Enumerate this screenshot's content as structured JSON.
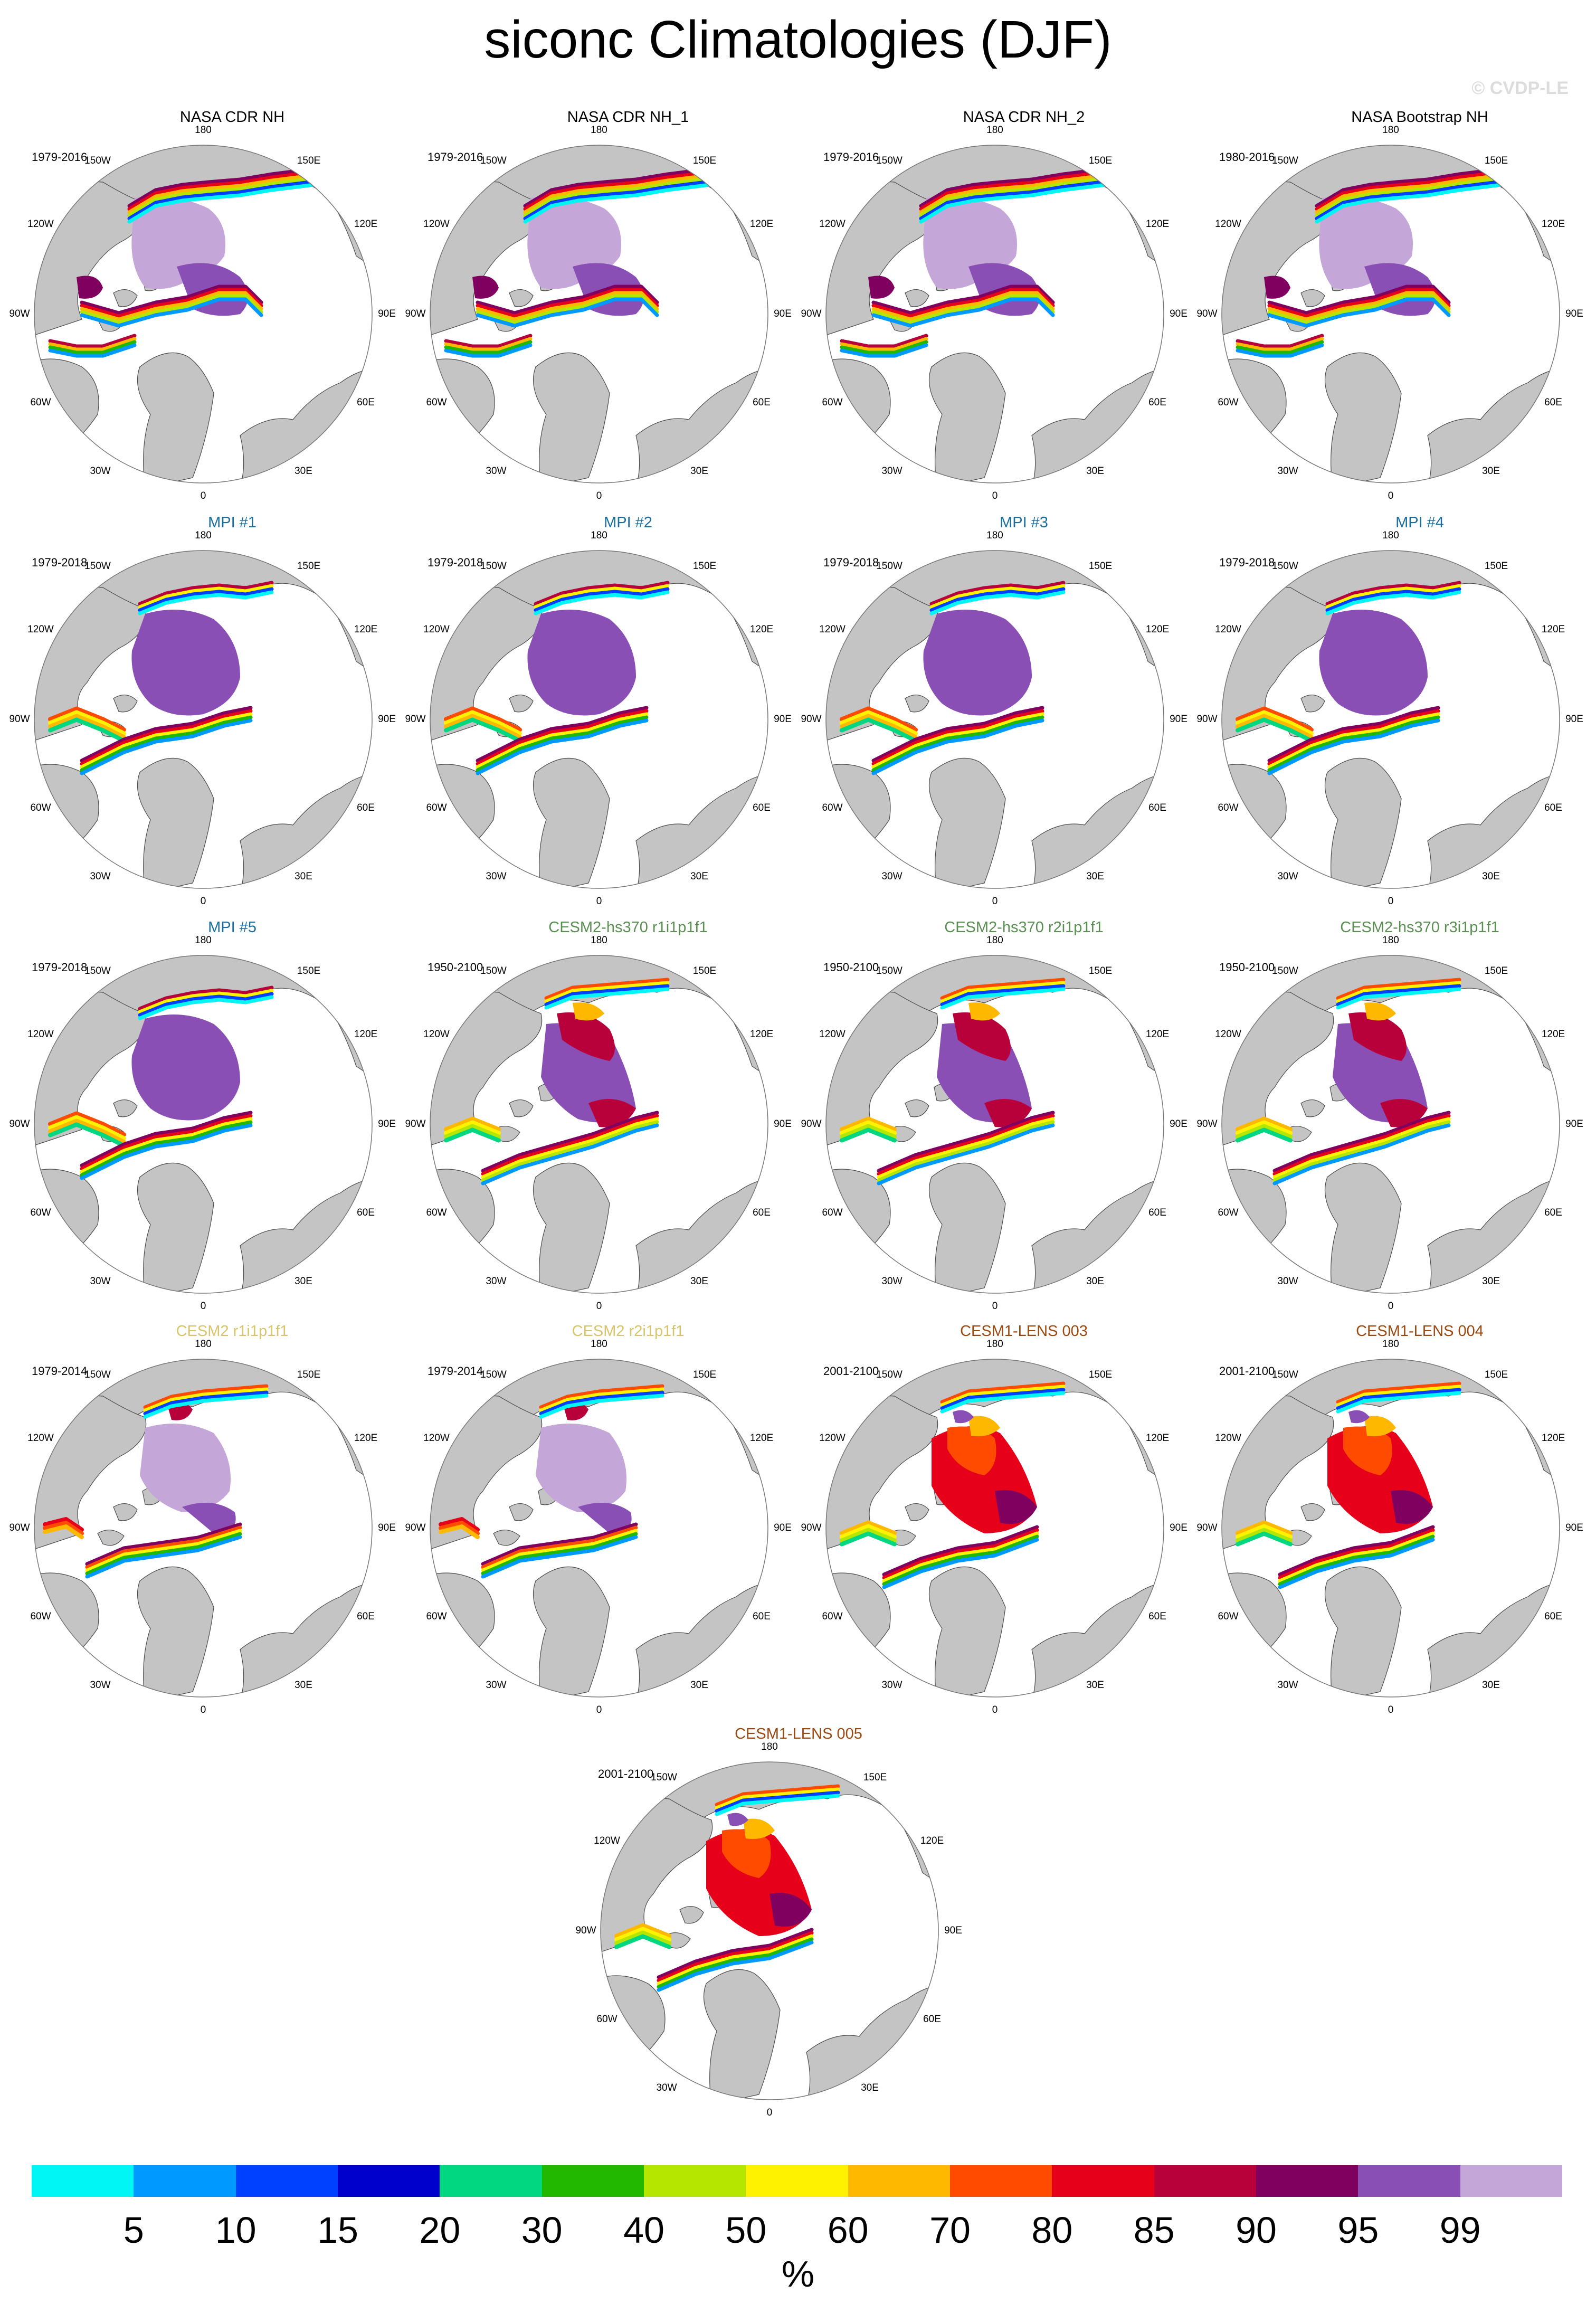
{
  "title": "siconc Climatologies (DJF)",
  "credit": "© CVDP-LE",
  "lon_labels": {
    "top": "180",
    "top_right": "150E",
    "top_left": "150W",
    "upper_right": "120E",
    "upper_left": "120W",
    "right": "90E",
    "left": "90W",
    "lower_right": "60E",
    "lower_left": "60W",
    "bottom_right": "30E",
    "bottom_left": "30W",
    "bottom": "0"
  },
  "colors": {
    "ocean": "#ffffff",
    "land": "#c4c4c4",
    "coastline": "#4a4a4a",
    "palette": [
      "#00f5f5",
      "#0099ff",
      "#0040ff",
      "#0000cc",
      "#00d780",
      "#22b800",
      "#b5e600",
      "#fff200",
      "#ffb800",
      "#ff4b00",
      "#e6001a",
      "#b8003a",
      "#800060",
      "#8a4fb5",
      "#c4a6d8"
    ]
  },
  "panels": [
    {
      "title": "NASA CDR NH",
      "title_color": "#000000",
      "years": "1979-2016",
      "pattern": "obs"
    },
    {
      "title": "NASA CDR NH_1",
      "title_color": "#000000",
      "years": "1979-2016",
      "pattern": "obs"
    },
    {
      "title": "NASA CDR NH_2",
      "title_color": "#000000",
      "years": "1979-2016",
      "pattern": "obs"
    },
    {
      "title": "NASA Bootstrap NH",
      "title_color": "#000000",
      "years": "1980-2016",
      "pattern": "obs"
    },
    {
      "title": "MPI #1",
      "title_color": "#1a6fa0",
      "years": "1979-2018",
      "pattern": "mpi"
    },
    {
      "title": "MPI #2",
      "title_color": "#1a6fa0",
      "years": "1979-2018",
      "pattern": "mpi"
    },
    {
      "title": "MPI #3",
      "title_color": "#1a6fa0",
      "years": "1979-2018",
      "pattern": "mpi"
    },
    {
      "title": "MPI #4",
      "title_color": "#1a6fa0",
      "years": "1979-2018",
      "pattern": "mpi"
    },
    {
      "title": "MPI #5",
      "title_color": "#1a6fa0",
      "years": "1979-2018",
      "pattern": "mpi"
    },
    {
      "title": "CESM2-hs370 r1i1p1f1",
      "title_color": "#5a8f52",
      "years": "1950-2100",
      "pattern": "hs370"
    },
    {
      "title": "CESM2-hs370 r2i1p1f1",
      "title_color": "#5a8f52",
      "years": "1950-2100",
      "pattern": "hs370"
    },
    {
      "title": "CESM2-hs370 r3i1p1f1",
      "title_color": "#5a8f52",
      "years": "1950-2100",
      "pattern": "hs370"
    },
    {
      "title": "CESM2 r1i1p1f1",
      "title_color": "#d8c46a",
      "years": "1979-2014",
      "pattern": "cesm2"
    },
    {
      "title": "CESM2 r2i1p1f1",
      "title_color": "#d8c46a",
      "years": "1979-2014",
      "pattern": "cesm2"
    },
    {
      "title": "CESM1-LENS 003",
      "title_color": "#9a4a10",
      "years": "2001-2100",
      "pattern": "lens"
    },
    {
      "title": "CESM1-LENS 004",
      "title_color": "#9a4a10",
      "years": "2001-2100",
      "pattern": "lens"
    },
    {
      "title": "CESM1-LENS 005",
      "title_color": "#9a4a10",
      "years": "2001-2100",
      "pattern": "lens"
    }
  ],
  "colorbar": {
    "tick_labels": [
      "5",
      "10",
      "15",
      "20",
      "30",
      "40",
      "50",
      "60",
      "70",
      "80",
      "85",
      "90",
      "95",
      "99"
    ],
    "units": "%"
  }
}
